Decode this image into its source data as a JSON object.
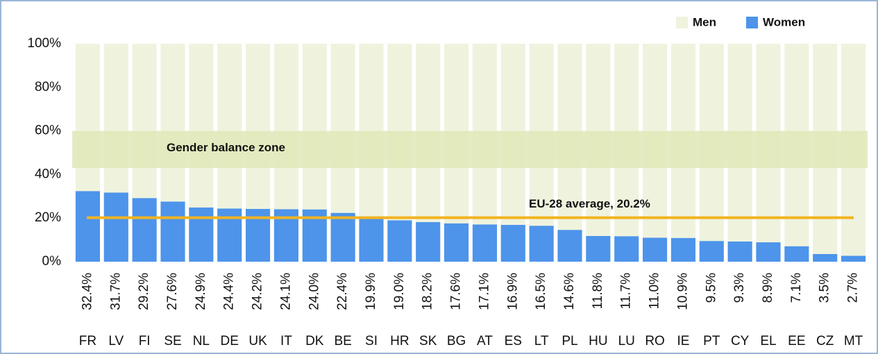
{
  "chart_data": {
    "type": "stacked_bar",
    "categories": [
      "FR",
      "LV",
      "FI",
      "SE",
      "NL",
      "DE",
      "UK",
      "IT",
      "DK",
      "BE",
      "SI",
      "HR",
      "SK",
      "BG",
      "AT",
      "ES",
      "LT",
      "PL",
      "HU",
      "LU",
      "RO",
      "IE",
      "PT",
      "CY",
      "EL",
      "EE",
      "CZ",
      "MT"
    ],
    "series": [
      {
        "name": "Women",
        "color": "#4d94ea",
        "values": [
          32.4,
          31.7,
          29.2,
          27.6,
          24.9,
          24.4,
          24.2,
          24.1,
          24.0,
          22.4,
          19.9,
          19.0,
          18.2,
          17.6,
          17.1,
          16.9,
          16.5,
          14.6,
          11.8,
          11.7,
          11.0,
          10.9,
          9.5,
          9.3,
          8.9,
          7.1,
          3.5,
          2.7
        ],
        "value_labels": [
          "32.4%",
          "31.7%",
          "29.2%",
          "27.6%",
          "24.9%",
          "24.4%",
          "24.2%",
          "24.1%",
          "24.0%",
          "22.4%",
          "19.9%",
          "19.0%",
          "18.2%",
          "17.6%",
          "17.1%",
          "16.9%",
          "16.5%",
          "14.6%",
          "11.8%",
          "11.7%",
          "11.0%",
          "10.9%",
          "9.5%",
          "9.3%",
          "8.9%",
          "7.1%",
          "3.5%",
          "2.7%"
        ]
      },
      {
        "name": "Men",
        "color": "#eff3de",
        "values": [
          67.6,
          68.3,
          70.8,
          72.4,
          75.1,
          75.6,
          75.8,
          75.9,
          76.0,
          77.6,
          80.1,
          81.0,
          81.8,
          82.4,
          82.9,
          83.1,
          83.5,
          85.4,
          88.2,
          88.3,
          89.0,
          89.1,
          90.5,
          90.7,
          91.1,
          92.9,
          96.5,
          97.3
        ]
      }
    ],
    "ylim": [
      0,
      100
    ],
    "yticks": [
      {
        "value": 0,
        "label": "0%"
      },
      {
        "value": 20,
        "label": "20%"
      },
      {
        "value": 40,
        "label": "40%"
      },
      {
        "value": 60,
        "label": "60%"
      },
      {
        "value": 80,
        "label": "80%"
      },
      {
        "value": 100,
        "label": "100%"
      }
    ],
    "legend": "top-right",
    "annotations": [
      {
        "text": "Gender balance zone",
        "range": [
          43,
          60
        ],
        "color": "#dfe7b8"
      },
      {
        "text": "EU-28 average, 20.2%",
        "value": 20.2,
        "color": "#f2b321"
      }
    ]
  }
}
